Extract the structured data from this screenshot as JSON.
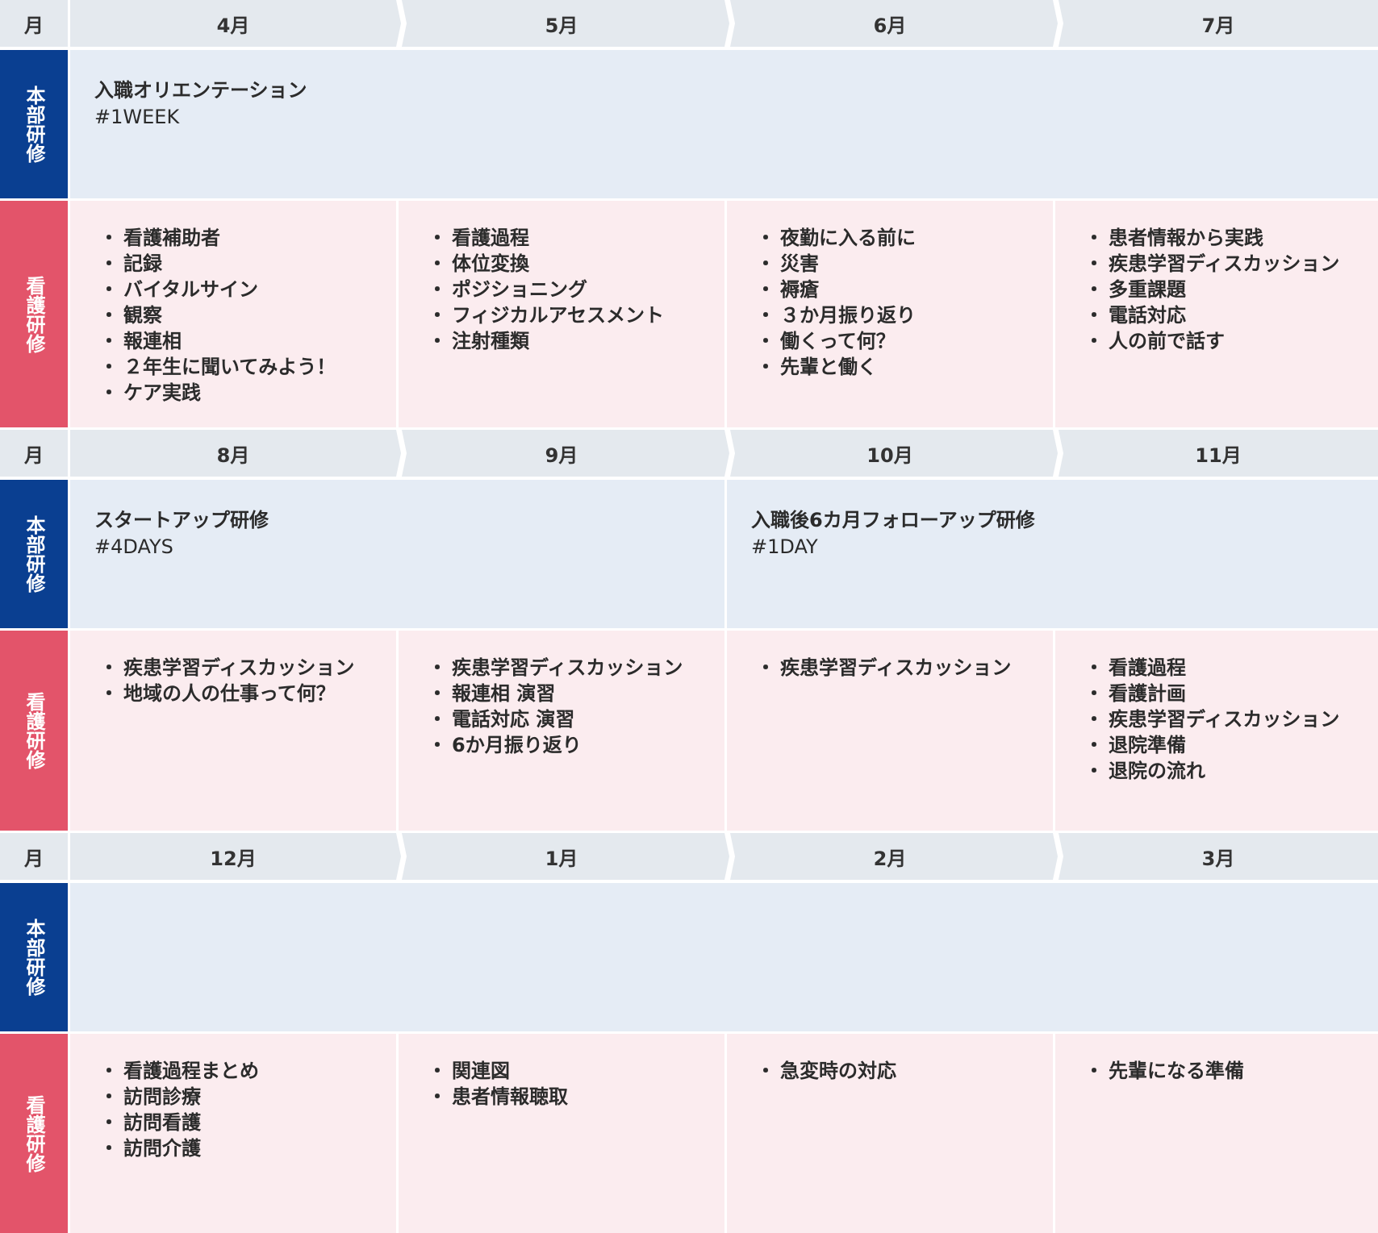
{
  "labels": {
    "month": "月",
    "honbu": "本部研修",
    "kango": "看護研修"
  },
  "blocks": [
    {
      "months": [
        "4月",
        "5月",
        "6月",
        "7月"
      ],
      "honbu": [
        {
          "title": "入職オリエンテーション",
          "tag": "#1WEEK"
        }
      ],
      "kango": [
        [
          "看護補助者",
          "記録",
          "バイタルサイン",
          "観察",
          "報連相",
          "２年生に聞いてみよう！",
          "ケア実践"
        ],
        [
          "看護過程",
          "体位変換",
          "ポジショニング",
          "フィジカルアセスメント",
          "注射種類"
        ],
        [
          "夜勤に入る前に",
          "災害",
          "褥瘡",
          "３か月振り返り",
          "働くって何？",
          "先輩と働く"
        ],
        [
          "患者情報から実践",
          "疾患学習ディスカッション",
          "多重課題",
          "電話対応",
          "人の前で話す"
        ]
      ]
    },
    {
      "months": [
        "8月",
        "9月",
        "10月",
        "11月"
      ],
      "honbu": [
        {
          "title": "スタートアップ研修",
          "tag": "#4DAYS"
        },
        {
          "title": "入職後6カ月フォローアップ研修",
          "tag": "#1DAY"
        }
      ],
      "kango": [
        [
          "疾患学習ディスカッション",
          "地域の人の仕事って何？"
        ],
        [
          "疾患学習ディスカッション",
          "報連相 演習",
          "電話対応 演習",
          "6か月振り返り"
        ],
        [
          "疾患学習ディスカッション"
        ],
        [
          "看護過程",
          "看護計画",
          "疾患学習ディスカッション",
          "退院準備",
          "退院の流れ"
        ]
      ]
    },
    {
      "months": [
        "12月",
        "1月",
        "2月",
        "3月"
      ],
      "honbu": [],
      "kango": [
        [
          "看護過程まとめ",
          "訪問診療",
          "訪問看護",
          "訪問介護"
        ],
        [
          "関連図",
          "患者情報聴取"
        ],
        [
          "急変時の対応"
        ],
        [
          "先輩になる準備"
        ]
      ]
    }
  ]
}
